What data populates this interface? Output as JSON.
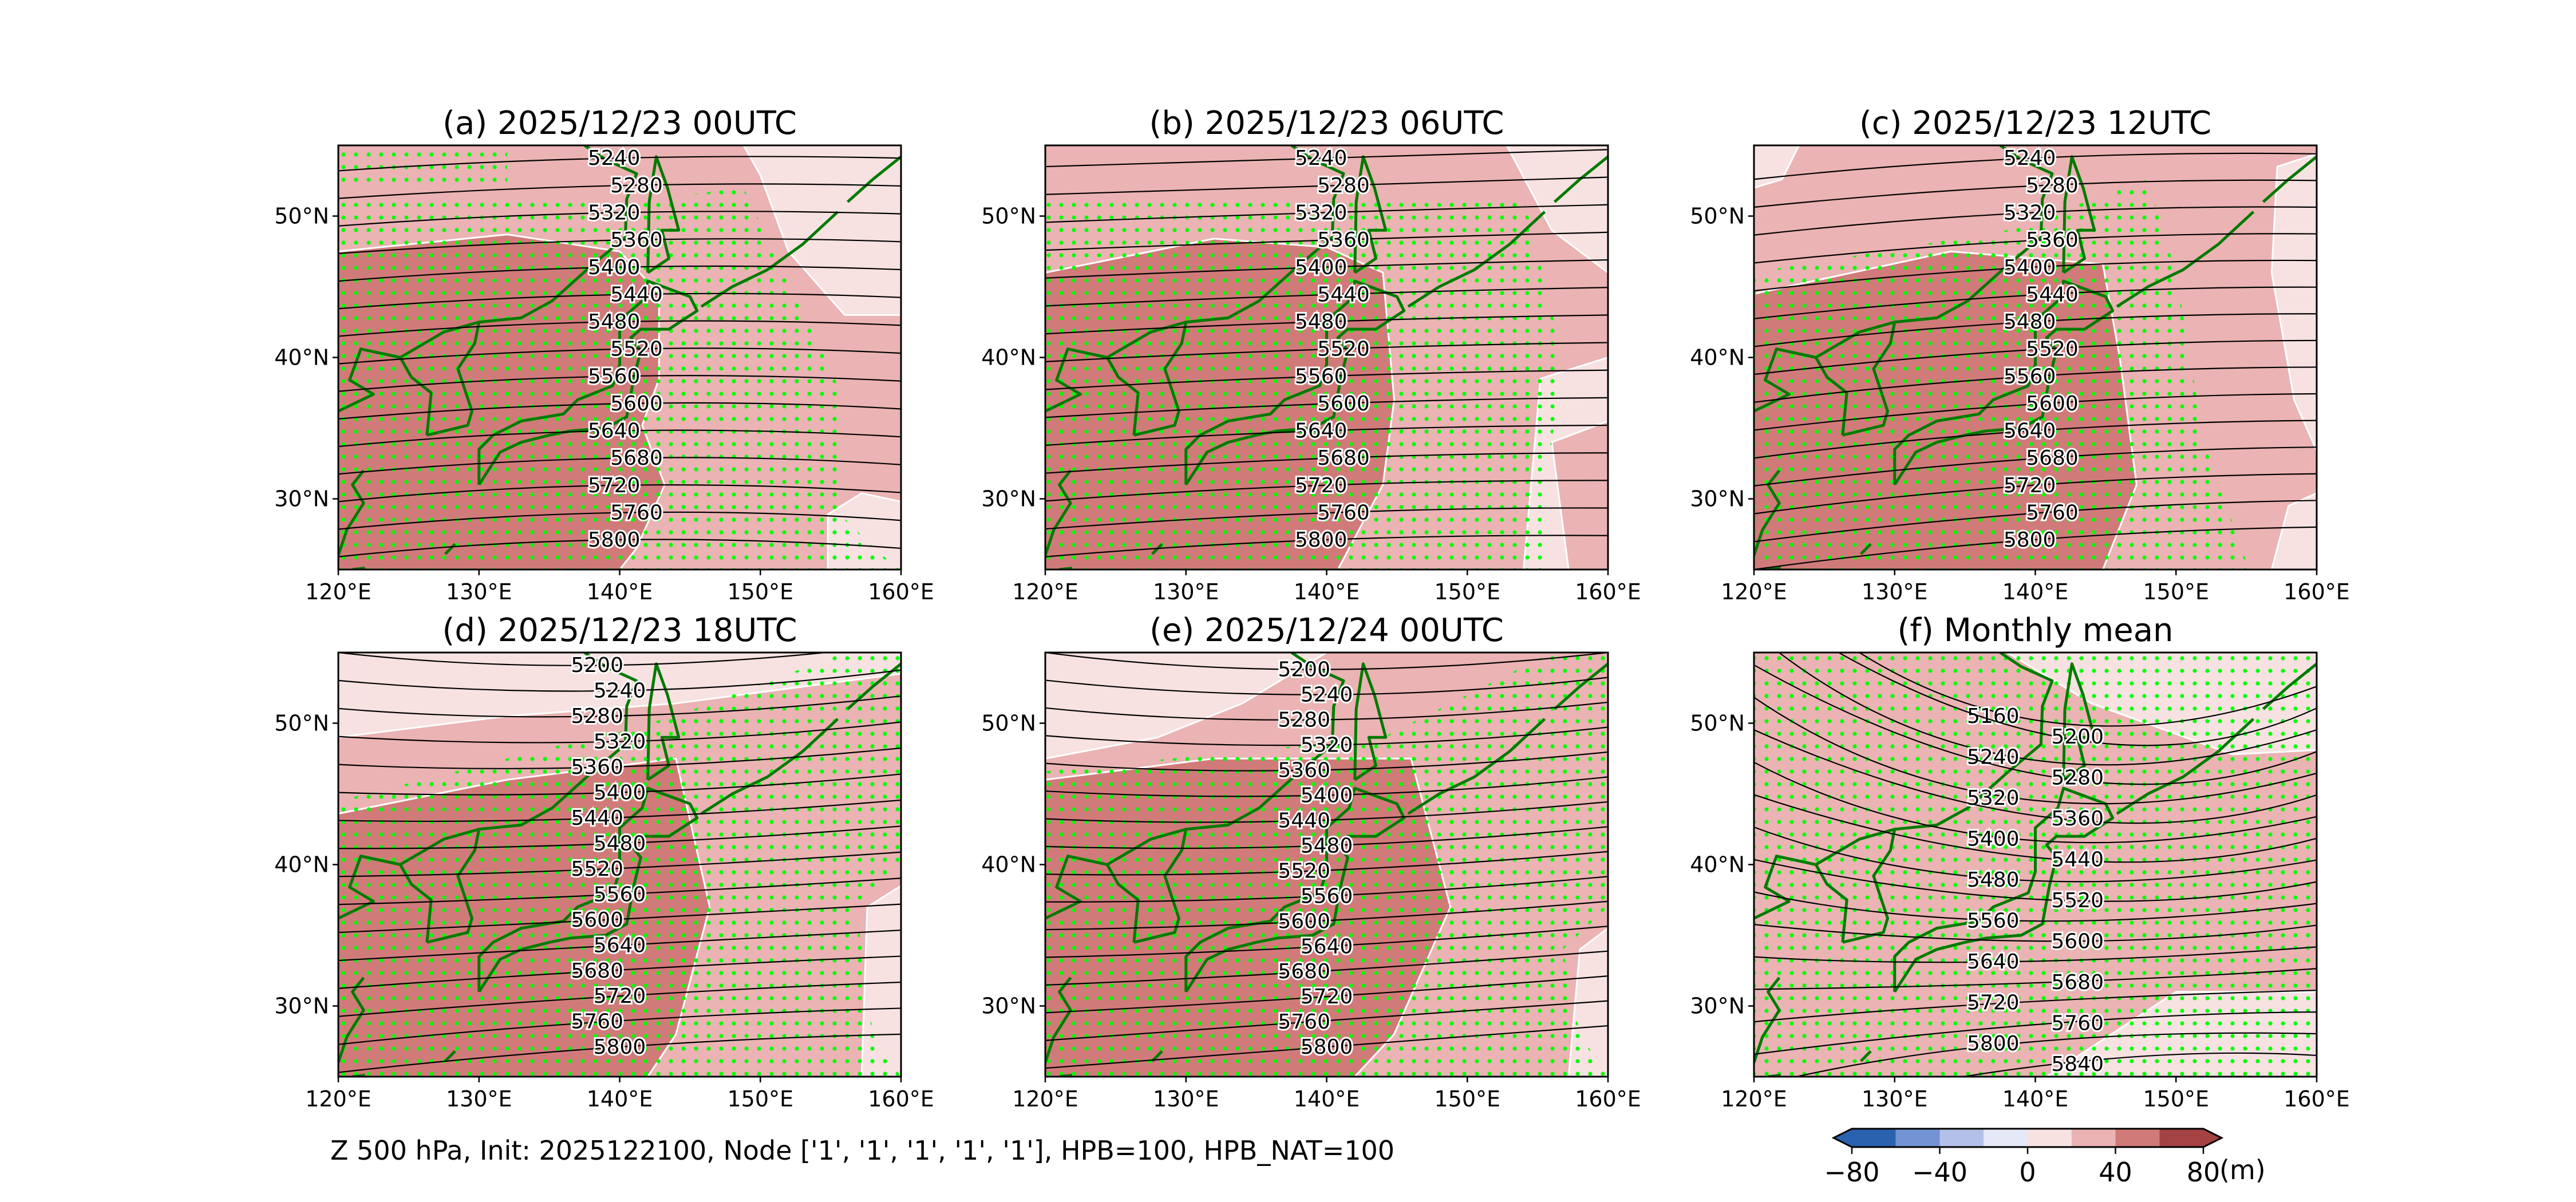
{
  "figure": {
    "caption": "Z 500 hPa, Init: 2025122100, Node ['1', '1', '1', '1', '1'], HPB=100, HPB_NAT=100"
  },
  "axes": {
    "lat_ticks": [
      {
        "value": 50,
        "label": "50°N"
      },
      {
        "value": 40,
        "label": "40°N"
      },
      {
        "value": 30,
        "label": "30°N"
      }
    ],
    "lon_ticks": [
      {
        "value": 120,
        "label": "120°E"
      },
      {
        "value": 130,
        "label": "130°E"
      },
      {
        "value": 140,
        "label": "140°E"
      },
      {
        "value": 150,
        "label": "150°E"
      },
      {
        "value": 160,
        "label": "160°E"
      }
    ],
    "lon_range": [
      120,
      160
    ],
    "lat_range": [
      25,
      55
    ]
  },
  "panels": [
    {
      "title": "(a) 2025/12/23 00UTC",
      "contour_levels": [
        5240,
        5280,
        5320,
        5360,
        5400,
        5440,
        5480,
        5520,
        5560,
        5600,
        5640,
        5680,
        5720,
        5760,
        5800
      ]
    },
    {
      "title": "(b) 2025/12/23 06UTC",
      "contour_levels": [
        5240,
        5280,
        5320,
        5360,
        5400,
        5440,
        5480,
        5520,
        5560,
        5600,
        5640,
        5680,
        5720,
        5760,
        5800
      ]
    },
    {
      "title": "(c) 2025/12/23 12UTC",
      "contour_levels": [
        5240,
        5280,
        5320,
        5360,
        5400,
        5440,
        5480,
        5520,
        5560,
        5600,
        5640,
        5680,
        5720,
        5760,
        5800
      ]
    },
    {
      "title": "(d) 2025/12/23 18UTC",
      "contour_levels": [
        5200,
        5240,
        5280,
        5320,
        5360,
        5400,
        5440,
        5480,
        5520,
        5560,
        5600,
        5640,
        5680,
        5720,
        5760,
        5800
      ]
    },
    {
      "title": "(e) 2025/12/24 00UTC",
      "contour_levels": [
        5200,
        5240,
        5280,
        5320,
        5360,
        5400,
        5440,
        5480,
        5520,
        5560,
        5600,
        5640,
        5680,
        5720,
        5760,
        5800
      ]
    },
    {
      "title": "(f) Monthly mean",
      "contour_levels": [
        5160,
        5200,
        5240,
        5280,
        5320,
        5360,
        5400,
        5440,
        5480,
        5520,
        5560,
        5600,
        5640,
        5680,
        5720,
        5760,
        5800,
        5840
      ]
    }
  ],
  "colorbar": {
    "ticks": [
      {
        "value": -80,
        "label": "−80"
      },
      {
        "value": -40,
        "label": "−40"
      },
      {
        "value": 0,
        "label": "0"
      },
      {
        "value": 40,
        "label": "40"
      },
      {
        "value": 80,
        "label": "80"
      }
    ],
    "unit": "(m)",
    "bounds": [
      -80,
      -60,
      -40,
      -20,
      0,
      20,
      40,
      60,
      80
    ],
    "extend": "both",
    "colors": [
      "#2b62b0",
      "#7393d3",
      "#b3c0e8",
      "#e5e8f6",
      "#f7e2e1",
      "#ebb3b3",
      "#d17a7a",
      "#a44244"
    ]
  },
  "style": {
    "stipple_color": "#00ff00",
    "coastline_color": "#007a00",
    "contour_color": "#000000",
    "anomaly_zero_contour_color": "#ffffff"
  }
}
